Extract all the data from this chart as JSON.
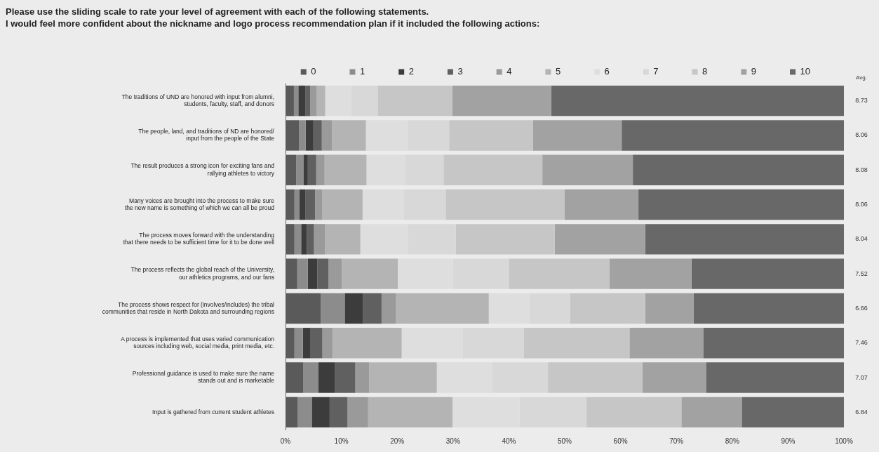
{
  "chart_data": {
    "type": "bar",
    "orientation": "horizontal",
    "stacked": true,
    "title": "Please use the sliding scale to rate your level of agreement with each of the following statements.",
    "subtitle": "I would feel more confident about the nickname and logo process recommendation plan if it included the following actions:",
    "categories": [
      "The traditions of UND are honored with input from alumni,\nstudents, faculty, staff, and donors",
      "The people, land, and traditions of ND are honored/\ninput from the people of the State",
      "The result produces a strong icon for exciting fans and\nrallying athletes to victory",
      "Many voices are brought into the process to make sure\nthe new name is something of which we can all be proud",
      "The process moves forward with the understanding\nthat there needs to be sufficient time for it to be done well",
      "The process reflects the global reach of the University,\nour athletics programs, and our fans",
      "The process shows respect for (involves/includes) the tribal\ncommunities that reside in North Dakota and surrounding regions",
      "A process is implemented that uses varied communication\nsources including web, social media, print media, etc.",
      "Professional guidance is used to make sure the name\nstands out and is marketable",
      "Input is gathered from current student athletes"
    ],
    "series": [
      {
        "name": "0",
        "color": "#5a5a5a",
        "values": [
          1.5,
          2.4,
          1.9,
          1.6,
          1.6,
          2.1,
          6.3,
          1.6,
          3.2,
          2.2
        ]
      },
      {
        "name": "1",
        "color": "#8c8c8c",
        "values": [
          0.8,
          1.2,
          1.3,
          0.9,
          1.2,
          1.9,
          4.3,
          1.5,
          2.7,
          2.5
        ]
      },
      {
        "name": "2",
        "color": "#3c3c3c",
        "values": [
          1.3,
          1.4,
          0.8,
          1.1,
          1.0,
          1.7,
          3.3,
          1.3,
          2.9,
          3.2
        ]
      },
      {
        "name": "3",
        "color": "#606060",
        "values": [
          0.8,
          1.5,
          1.5,
          1.7,
          1.3,
          2.0,
          3.3,
          2.2,
          3.7,
          3.2
        ]
      },
      {
        "name": "4",
        "color": "#9a9a9a",
        "values": [
          1.2,
          1.8,
          1.5,
          1.3,
          2.0,
          2.4,
          2.6,
          1.8,
          2.5,
          3.7
        ]
      },
      {
        "name": "5",
        "color": "#b4b4b4",
        "values": [
          1.5,
          6.1,
          7.5,
          7.2,
          6.3,
          10.0,
          16.6,
          12.4,
          12.1,
          15.1
        ]
      },
      {
        "name": "6",
        "color": "#dedede",
        "values": [
          4.7,
          7.4,
          6.9,
          7.4,
          8.5,
          9.9,
          7.3,
          10.9,
          9.9,
          12.0
        ]
      },
      {
        "name": "7",
        "color": "#d8d8d8",
        "values": [
          4.7,
          7.5,
          6.9,
          7.5,
          8.6,
          10.0,
          7.3,
          11.0,
          10.0,
          12.0
        ]
      },
      {
        "name": "8",
        "color": "#c6c6c6",
        "values": [
          13.4,
          15.0,
          17.7,
          21.3,
          17.7,
          18.0,
          13.4,
          18.9,
          16.9,
          17.0
        ]
      },
      {
        "name": "9",
        "color": "#a2a2a2",
        "values": [
          17.7,
          15.9,
          16.2,
          13.2,
          16.2,
          14.7,
          8.7,
          13.2,
          11.4,
          10.8
        ]
      },
      {
        "name": "10",
        "color": "#686868",
        "values": [
          52.4,
          39.8,
          37.8,
          36.8,
          35.6,
          27.3,
          26.9,
          25.2,
          24.7,
          18.3
        ]
      }
    ],
    "xlim": [
      0,
      100
    ],
    "xticks": [
      {
        "value": 0,
        "label": "0%"
      },
      {
        "value": 10,
        "label": "10%"
      },
      {
        "value": 20,
        "label": "20%"
      },
      {
        "value": 30,
        "label": "30%"
      },
      {
        "value": 40,
        "label": "40%"
      },
      {
        "value": 50,
        "label": "50%"
      },
      {
        "value": 60,
        "label": "60%"
      },
      {
        "value": 70,
        "label": "70%"
      },
      {
        "value": 80,
        "label": "80%"
      },
      {
        "value": 90,
        "label": "90%"
      },
      {
        "value": 100,
        "label": "100%"
      }
    ],
    "legend": "top",
    "annotations": [
      "Avg.",
      "8.73",
      "8.06",
      "8.08",
      "8.06",
      "8.04",
      "7.52",
      "6.66",
      "7.46",
      "7.07",
      "6.84"
    ]
  }
}
